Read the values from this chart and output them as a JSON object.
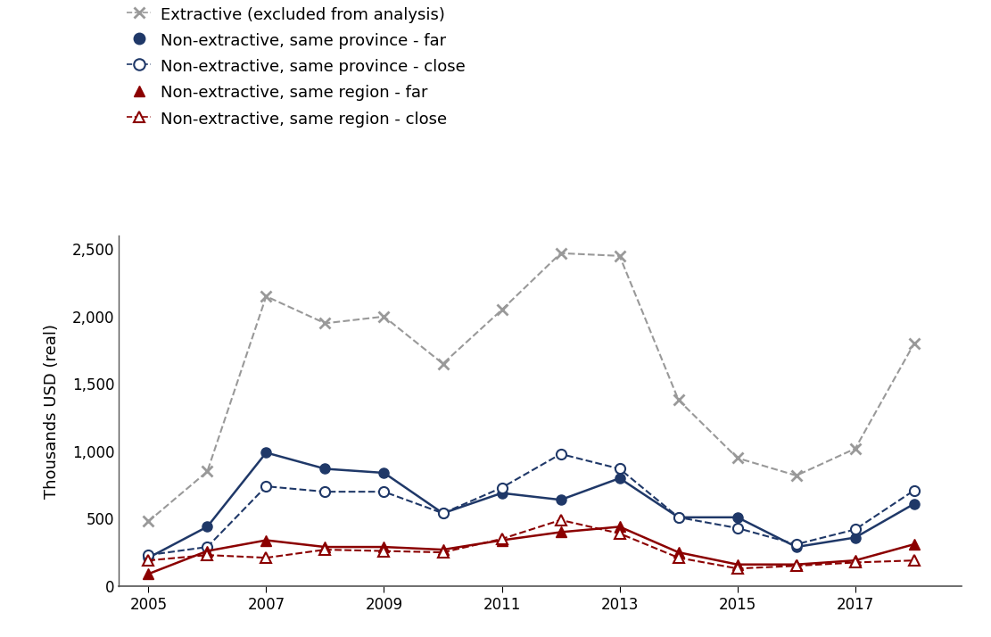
{
  "years": [
    2005,
    2006,
    2007,
    2008,
    2009,
    2010,
    2011,
    2012,
    2013,
    2014,
    2015,
    2016,
    2017,
    2018
  ],
  "extractive": [
    480,
    850,
    2150,
    1950,
    2000,
    1650,
    2050,
    2470,
    2450,
    1380,
    950,
    820,
    1020,
    1800
  ],
  "prov_far": [
    210,
    440,
    990,
    870,
    840,
    540,
    690,
    640,
    800,
    510,
    510,
    290,
    360,
    610
  ],
  "prov_close": [
    230,
    290,
    740,
    700,
    700,
    540,
    730,
    980,
    870,
    510,
    430,
    310,
    420,
    710
  ],
  "reg_far": [
    90,
    260,
    340,
    290,
    290,
    270,
    340,
    400,
    440,
    250,
    160,
    160,
    190,
    310
  ],
  "reg_close": [
    190,
    230,
    210,
    270,
    260,
    250,
    350,
    490,
    390,
    210,
    130,
    150,
    175,
    190
  ],
  "color_extractive": "#999999",
  "color_prov_far": "#1f3868",
  "color_reg_far": "#8b0000",
  "ylabel": "Thousands USD (real)",
  "ylim": [
    0,
    2600
  ],
  "yticks": [
    0,
    500,
    1000,
    1500,
    2000,
    2500
  ],
  "ytick_labels": [
    "0",
    "500",
    "1,000",
    "1,500",
    "2,000",
    "2,500"
  ],
  "xticks": [
    2005,
    2007,
    2009,
    2011,
    2013,
    2015,
    2017
  ],
  "legend_labels": [
    "Extractive (excluded from analysis)",
    "Non-extractive, same province - far",
    "Non-extractive, same province - close",
    "Non-extractive, same region - far",
    "Non-extractive, same region - close"
  ],
  "figsize": [
    11.11,
    7.14
  ],
  "dpi": 100
}
